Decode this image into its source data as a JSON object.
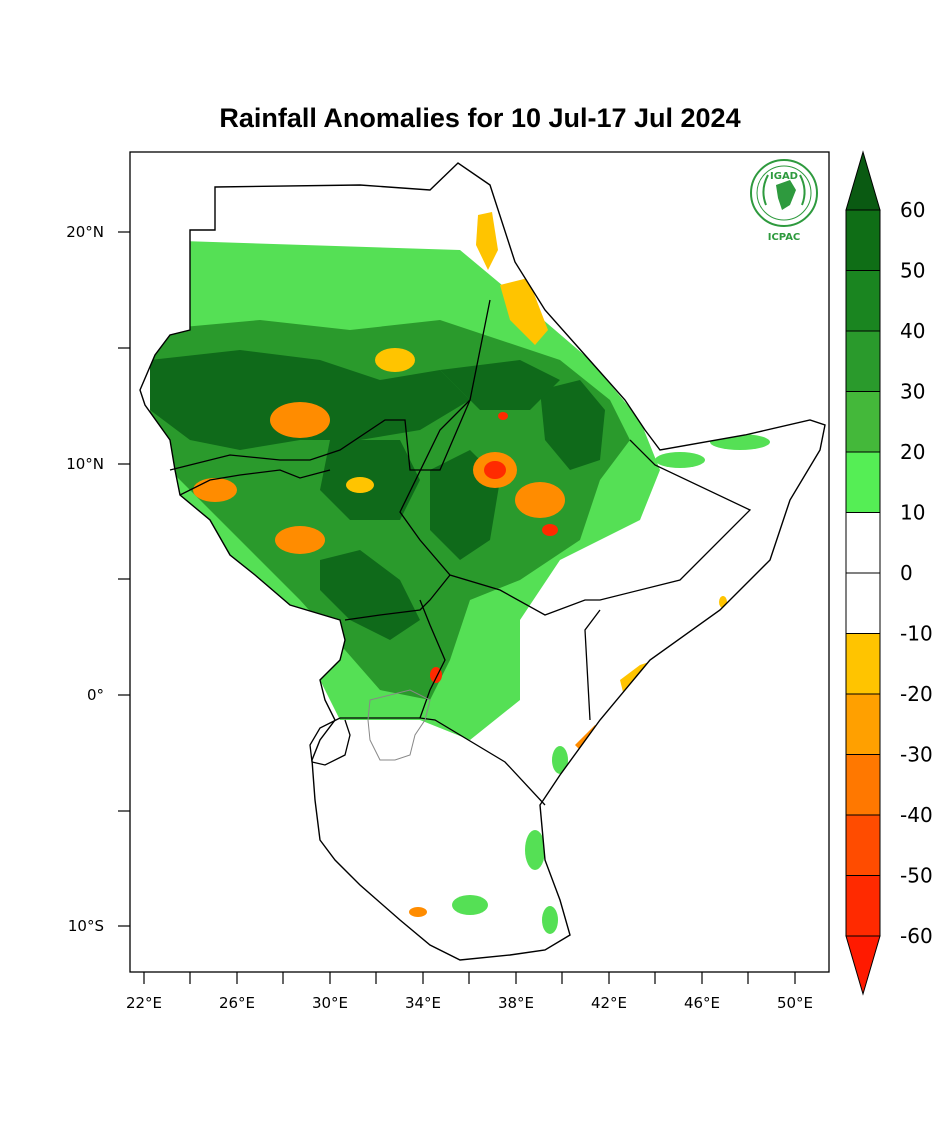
{
  "title": "Rainfall Anomalies for 10 Jul-17 Jul 2024",
  "logo": {
    "top_text": "IGAD",
    "bottom_text": "ICPAC",
    "color": "#2e9a3e"
  },
  "lat_labels": [
    "20°N",
    "10°N",
    "0°",
    "10°S"
  ],
  "lon_labels": [
    "22°E",
    "26°E",
    "30°E",
    "34°E",
    "38°E",
    "42°E",
    "46°E",
    "50°E"
  ],
  "colorbar": {
    "ticks": [
      "60",
      "50",
      "40",
      "30",
      "20",
      "10",
      "0",
      "-10",
      "-20",
      "-30",
      "-40",
      "-50",
      "-60"
    ],
    "top_arrow_color": "#0a5a12",
    "bottom_arrow_color": "#ff1a00",
    "segment_colors": [
      "#0f6e16",
      "#1a8520",
      "#2a9a2c",
      "#44b83a",
      "#55ee55",
      "#ffffff",
      "#ffffff",
      "#ffc400",
      "#ffa000",
      "#ff7800",
      "#ff4c00",
      "#ff2a00"
    ]
  },
  "legend": {
    "wet_strong": "#0f6a1a",
    "wet_mid": "#2a9a2c",
    "wet_light": "#55e055",
    "dry_light": "#ffc400",
    "dry_mid": "#ff8c00",
    "dry_strong": "#ff2a00",
    "lake": "#888888"
  }
}
